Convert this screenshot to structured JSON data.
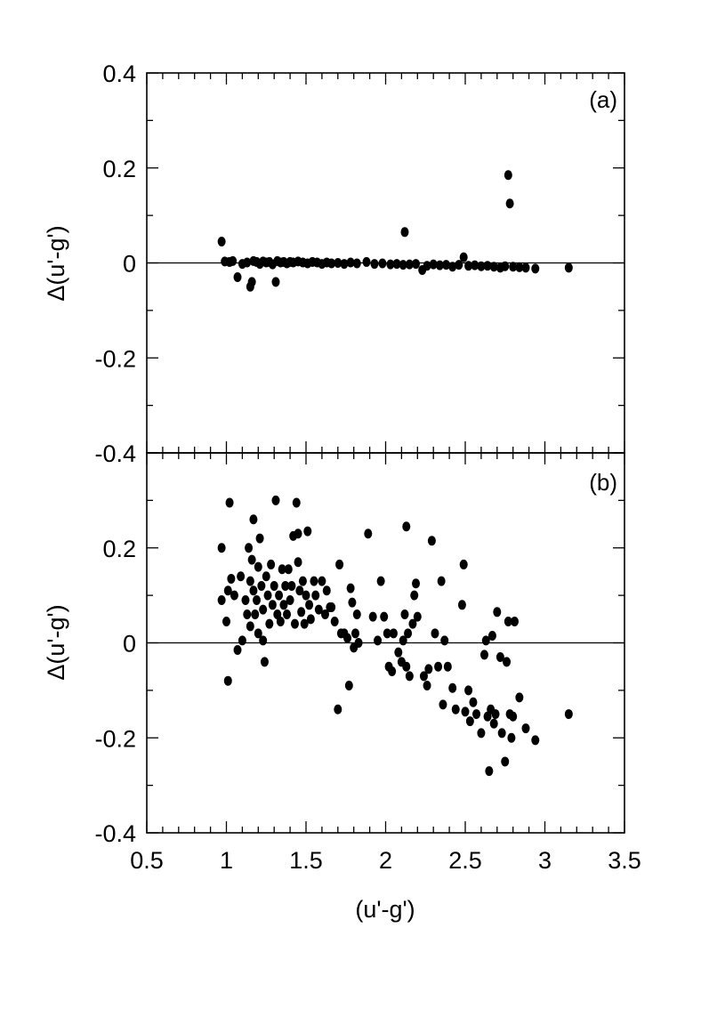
{
  "chart_data": [
    {
      "type": "scatter",
      "panel_label": "(a)",
      "ylabel": "Δ(u'-g')",
      "xlabel": "",
      "xlim": [
        0.5,
        3.5
      ],
      "ylim": [
        -0.4,
        0.4
      ],
      "x_ticks": [
        "0.5",
        "1",
        "1.5",
        "2",
        "2.5",
        "3",
        "3.5"
      ],
      "y_ticks": [
        "0.4",
        "0.2",
        "0",
        "-0.2",
        "-0.4"
      ],
      "y_tick_values": [
        0.4,
        0.2,
        0,
        -0.2,
        -0.4
      ],
      "reference_line_y": 0,
      "grid": false,
      "points": [
        [
          0.97,
          0.045
        ],
        [
          0.99,
          0.003
        ],
        [
          1.02,
          0.002
        ],
        [
          1.04,
          0.004
        ],
        [
          1.07,
          -0.03
        ],
        [
          1.1,
          -0.002
        ],
        [
          1.13,
          0.001
        ],
        [
          1.15,
          -0.05
        ],
        [
          1.16,
          -0.04
        ],
        [
          1.17,
          0.004
        ],
        [
          1.19,
          0.002
        ],
        [
          1.21,
          -0.002
        ],
        [
          1.23,
          0.003
        ],
        [
          1.25,
          0.001
        ],
        [
          1.27,
          0.002
        ],
        [
          1.29,
          -0.003
        ],
        [
          1.31,
          -0.04
        ],
        [
          1.32,
          0.004
        ],
        [
          1.34,
          0.001
        ],
        [
          1.36,
          0.002
        ],
        [
          1.38,
          -0.001
        ],
        [
          1.4,
          0.002
        ],
        [
          1.42,
          0.001
        ],
        [
          1.45,
          0.003
        ],
        [
          1.48,
          0.001
        ],
        [
          1.51,
          -0.001
        ],
        [
          1.54,
          0.002
        ],
        [
          1.57,
          0.001
        ],
        [
          1.6,
          -0.002
        ],
        [
          1.63,
          0.001
        ],
        [
          1.66,
          -0.001
        ],
        [
          1.7,
          0.0
        ],
        [
          1.74,
          -0.002
        ],
        [
          1.78,
          0.001
        ],
        [
          1.82,
          -0.001
        ],
        [
          1.88,
          0.002
        ],
        [
          1.93,
          -0.002
        ],
        [
          1.98,
          -0.001
        ],
        [
          2.03,
          -0.003
        ],
        [
          2.07,
          -0.002
        ],
        [
          2.11,
          -0.004
        ],
        [
          2.12,
          0.065
        ],
        [
          2.15,
          -0.003
        ],
        [
          2.19,
          -0.002
        ],
        [
          2.23,
          -0.015
        ],
        [
          2.26,
          -0.006
        ],
        [
          2.3,
          -0.003
        ],
        [
          2.34,
          -0.005
        ],
        [
          2.38,
          -0.004
        ],
        [
          2.42,
          -0.008
        ],
        [
          2.46,
          -0.004
        ],
        [
          2.49,
          0.012
        ],
        [
          2.52,
          -0.006
        ],
        [
          2.56,
          -0.005
        ],
        [
          2.6,
          -0.007
        ],
        [
          2.64,
          -0.006
        ],
        [
          2.68,
          -0.008
        ],
        [
          2.72,
          -0.01
        ],
        [
          2.75,
          -0.007
        ],
        [
          2.77,
          0.185
        ],
        [
          2.78,
          0.125
        ],
        [
          2.8,
          -0.008
        ],
        [
          2.84,
          -0.009
        ],
        [
          2.88,
          -0.01
        ],
        [
          2.94,
          -0.012
        ],
        [
          3.15,
          -0.01
        ]
      ]
    },
    {
      "type": "scatter",
      "panel_label": "(b)",
      "ylabel": "Δ(u'-g')",
      "xlabel": "(u'-g')",
      "xlim": [
        0.5,
        3.5
      ],
      "ylim": [
        -0.4,
        0.4
      ],
      "x_ticks": [
        "0.5",
        "1",
        "1.5",
        "2",
        "2.5",
        "3",
        "3.5"
      ],
      "x_tick_values": [
        0.5,
        1,
        1.5,
        2,
        2.5,
        3,
        3.5
      ],
      "y_ticks": [
        "0.2",
        "0",
        "-0.2",
        "-0.4"
      ],
      "y_tick_values": [
        0.2,
        0,
        -0.2,
        -0.4
      ],
      "reference_line_y": 0,
      "grid": false,
      "points": [
        [
          0.97,
          0.2
        ],
        [
          0.97,
          0.09
        ],
        [
          1.0,
          0.045
        ],
        [
          1.01,
          0.11
        ],
        [
          1.01,
          -0.08
        ],
        [
          1.02,
          0.295
        ],
        [
          1.03,
          0.135
        ],
        [
          1.05,
          0.1
        ],
        [
          1.07,
          -0.015
        ],
        [
          1.09,
          0.14
        ],
        [
          1.1,
          0.005
        ],
        [
          1.12,
          0.09
        ],
        [
          1.13,
          0.06
        ],
        [
          1.14,
          0.2
        ],
        [
          1.15,
          0.13
        ],
        [
          1.15,
          0.035
        ],
        [
          1.16,
          0.175
        ],
        [
          1.17,
          0.26
        ],
        [
          1.17,
          0.11
        ],
        [
          1.18,
          0.06
        ],
        [
          1.19,
          0.09
        ],
        [
          1.2,
          0.16
        ],
        [
          1.2,
          0.02
        ],
        [
          1.21,
          0.22
        ],
        [
          1.22,
          0.12
        ],
        [
          1.23,
          0.07
        ],
        [
          1.23,
          0.005
        ],
        [
          1.24,
          -0.04
        ],
        [
          1.25,
          0.14
        ],
        [
          1.26,
          0.1
        ],
        [
          1.27,
          0.04
        ],
        [
          1.28,
          0.165
        ],
        [
          1.29,
          0.08
        ],
        [
          1.3,
          0.12
        ],
        [
          1.31,
          0.3
        ],
        [
          1.32,
          0.06
        ],
        [
          1.33,
          0.1
        ],
        [
          1.34,
          0.045
        ],
        [
          1.35,
          0.155
        ],
        [
          1.36,
          0.08
        ],
        [
          1.37,
          0.12
        ],
        [
          1.38,
          0.06
        ],
        [
          1.39,
          0.155
        ],
        [
          1.4,
          0.09
        ],
        [
          1.41,
          0.12
        ],
        [
          1.42,
          0.225
        ],
        [
          1.43,
          0.04
        ],
        [
          1.44,
          0.295
        ],
        [
          1.45,
          0.23
        ],
        [
          1.45,
          0.17
        ],
        [
          1.46,
          0.11
        ],
        [
          1.47,
          0.065
        ],
        [
          1.48,
          0.13
        ],
        [
          1.49,
          0.04
        ],
        [
          1.5,
          0.1
        ],
        [
          1.51,
          0.235
        ],
        [
          1.52,
          0.08
        ],
        [
          1.53,
          0.05
        ],
        [
          1.55,
          0.13
        ],
        [
          1.56,
          0.1
        ],
        [
          1.58,
          0.07
        ],
        [
          1.6,
          0.13
        ],
        [
          1.62,
          0.06
        ],
        [
          1.63,
          0.11
        ],
        [
          1.65,
          0.075
        ],
        [
          1.66,
          0.075
        ],
        [
          1.68,
          0.045
        ],
        [
          1.7,
          -0.14
        ],
        [
          1.71,
          0.165
        ],
        [
          1.72,
          0.02
        ],
        [
          1.74,
          0.02
        ],
        [
          1.76,
          0.01
        ],
        [
          1.77,
          -0.09
        ],
        [
          1.78,
          0.115
        ],
        [
          1.79,
          0.085
        ],
        [
          1.8,
          -0.01
        ],
        [
          1.81,
          0.02
        ],
        [
          1.82,
          0.06
        ],
        [
          1.83,
          0.0
        ],
        [
          1.89,
          0.23
        ],
        [
          1.92,
          0.055
        ],
        [
          1.95,
          0.005
        ],
        [
          1.97,
          0.13
        ],
        [
          1.99,
          0.055
        ],
        [
          2.01,
          0.02
        ],
        [
          2.02,
          -0.05
        ],
        [
          2.04,
          -0.06
        ],
        [
          2.05,
          0.02
        ],
        [
          2.08,
          -0.02
        ],
        [
          2.1,
          -0.04
        ],
        [
          2.11,
          0.005
        ],
        [
          2.12,
          0.06
        ],
        [
          2.13,
          0.245
        ],
        [
          2.13,
          -0.05
        ],
        [
          2.14,
          0.02
        ],
        [
          2.15,
          -0.07
        ],
        [
          2.17,
          0.04
        ],
        [
          2.18,
          0.1
        ],
        [
          2.19,
          0.125
        ],
        [
          2.2,
          0.055
        ],
        [
          2.24,
          -0.07
        ],
        [
          2.26,
          -0.09
        ],
        [
          2.27,
          -0.055
        ],
        [
          2.29,
          0.215
        ],
        [
          2.31,
          0.02
        ],
        [
          2.33,
          -0.05
        ],
        [
          2.35,
          0.13
        ],
        [
          2.36,
          -0.13
        ],
        [
          2.37,
          0.005
        ],
        [
          2.39,
          -0.05
        ],
        [
          2.42,
          -0.095
        ],
        [
          2.44,
          -0.14
        ],
        [
          2.48,
          0.08
        ],
        [
          2.49,
          0.165
        ],
        [
          2.5,
          -0.145
        ],
        [
          2.52,
          -0.1
        ],
        [
          2.53,
          -0.165
        ],
        [
          2.55,
          -0.125
        ],
        [
          2.57,
          -0.15
        ],
        [
          2.6,
          -0.19
        ],
        [
          2.62,
          -0.025
        ],
        [
          2.63,
          0.005
        ],
        [
          2.64,
          -0.155
        ],
        [
          2.65,
          -0.27
        ],
        [
          2.66,
          -0.14
        ],
        [
          2.67,
          0.015
        ],
        [
          2.68,
          -0.17
        ],
        [
          2.69,
          -0.15
        ],
        [
          2.7,
          0.065
        ],
        [
          2.72,
          -0.03
        ],
        [
          2.73,
          -0.19
        ],
        [
          2.75,
          -0.25
        ],
        [
          2.76,
          -0.04
        ],
        [
          2.77,
          0.045
        ],
        [
          2.78,
          -0.15
        ],
        [
          2.79,
          -0.2
        ],
        [
          2.8,
          -0.155
        ],
        [
          2.81,
          0.045
        ],
        [
          2.84,
          -0.115
        ],
        [
          2.88,
          -0.18
        ],
        [
          2.94,
          -0.205
        ],
        [
          3.15,
          -0.15
        ]
      ]
    }
  ]
}
